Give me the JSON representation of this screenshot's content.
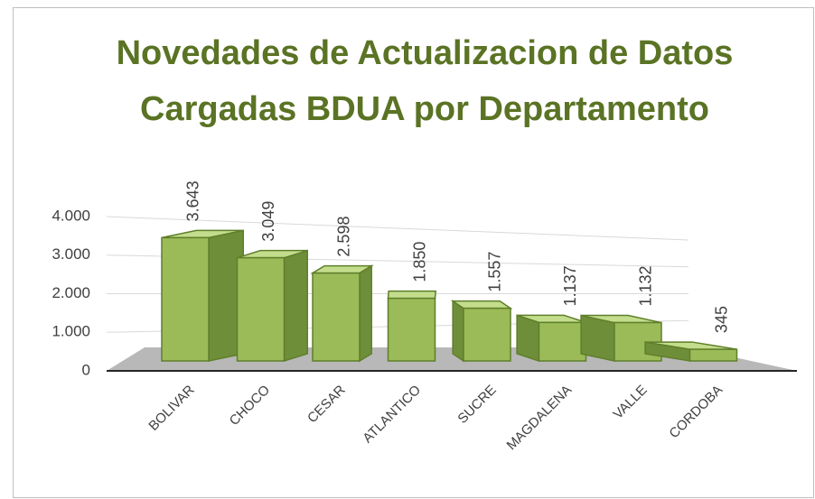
{
  "chart_data": {
    "type": "bar3d",
    "title": "Novedades de Actualizacion de Datos Cargadas BDUA por Departamento",
    "categories": [
      "BOLIVAR",
      "CHOCO",
      "CESAR",
      "ATLANTICO",
      "SUCRE",
      "MAGDALENA",
      "VALLE",
      "CORDOBA"
    ],
    "values": [
      3643,
      3049,
      2598,
      1850,
      1557,
      1137,
      1132,
      345
    ],
    "value_labels": [
      "3.643",
      "3.049",
      "2.598",
      "1.850",
      "1.557",
      "1.137",
      "1.132",
      "345"
    ],
    "color": "#9bbb59",
    "ylim": [
      0,
      4000
    ],
    "yticks": [
      0,
      {
        "value": 1000,
        "label": "1.000"
      },
      {
        "value": 2000,
        "label": "2.000"
      },
      {
        "value": 3000,
        "label": "3.000"
      },
      {
        "value": 4000,
        "label": "4.000"
      }
    ],
    "grid": true
  }
}
